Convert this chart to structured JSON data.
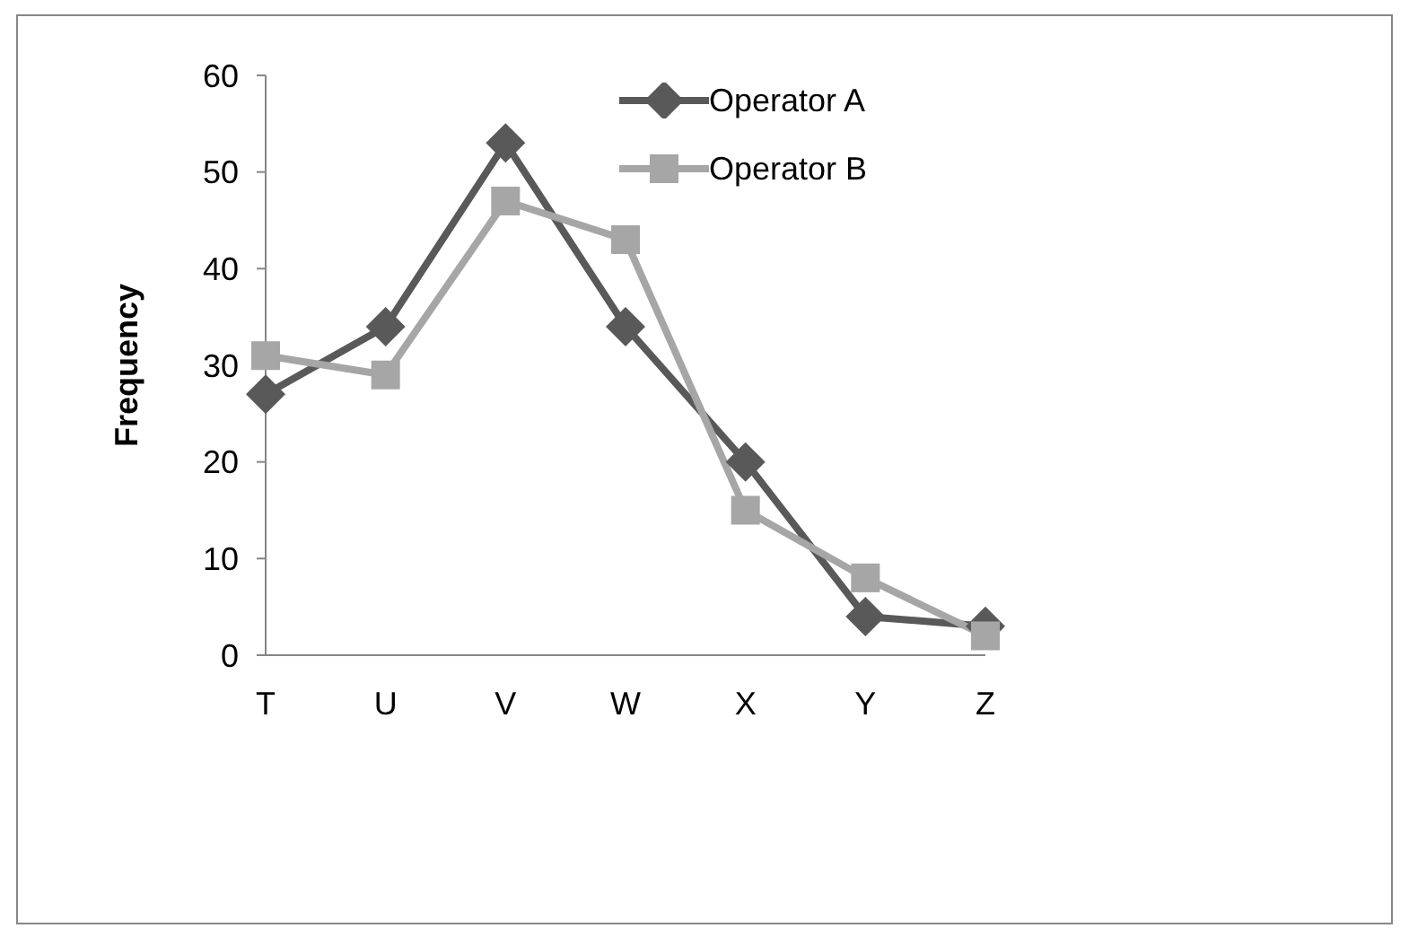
{
  "chart_data": {
    "type": "line",
    "ylabel": "Frequency",
    "categories": [
      "T",
      "U",
      "V",
      "W",
      "X",
      "Y",
      "Z"
    ],
    "series": [
      {
        "name": "Operator A",
        "color": "#595959",
        "marker": "diamond",
        "values": [
          27,
          34,
          53,
          34,
          20,
          4,
          3
        ]
      },
      {
        "name": "Operator B",
        "color": "#a6a6a6",
        "marker": "square",
        "values": [
          31,
          29,
          47,
          43,
          15,
          8,
          2
        ]
      }
    ],
    "ylim": [
      0,
      60
    ],
    "yticks": [
      0,
      10,
      20,
      30,
      40,
      50,
      60
    ],
    "grid": false,
    "legend": "top right",
    "line_style": "solid"
  }
}
